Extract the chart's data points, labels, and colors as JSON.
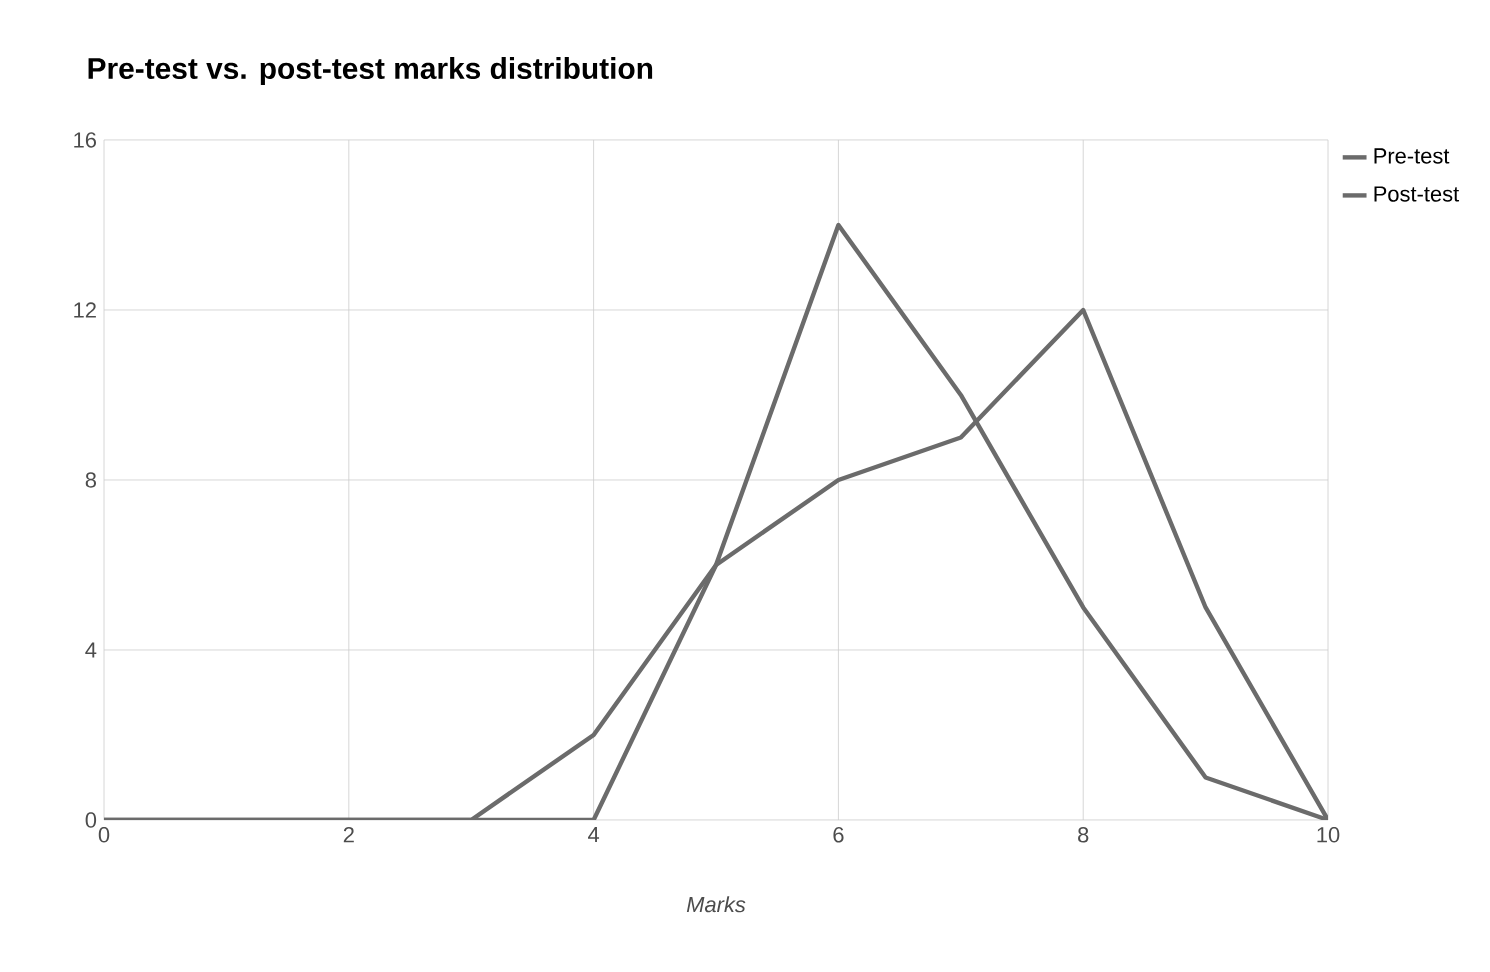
{
  "chart_data": {
    "type": "line",
    "title": "Pre-test vs. post-test marks distribution",
    "xlabel": "Marks",
    "x": [
      0,
      1,
      2,
      3,
      4,
      5,
      6,
      7,
      8,
      9,
      10
    ],
    "series": [
      {
        "name": "Pre-test",
        "color": "#6b6b6b",
        "values": [
          0,
          0,
          0,
          0,
          0,
          6,
          14,
          10,
          5,
          1,
          0
        ]
      },
      {
        "name": "Post-test",
        "color": "#6b6b6b",
        "values": [
          0,
          0,
          0,
          0,
          2,
          6,
          8,
          9,
          12,
          5,
          0
        ]
      }
    ],
    "xlim": [
      0,
      10
    ],
    "xticks": [
      0,
      2,
      4,
      6,
      8,
      10
    ],
    "ylim": [
      0,
      16
    ],
    "yticks": [
      0,
      4,
      8,
      12,
      16
    ],
    "grid": true,
    "legend": "top right",
    "marker": "none",
    "line_style": "solid"
  }
}
